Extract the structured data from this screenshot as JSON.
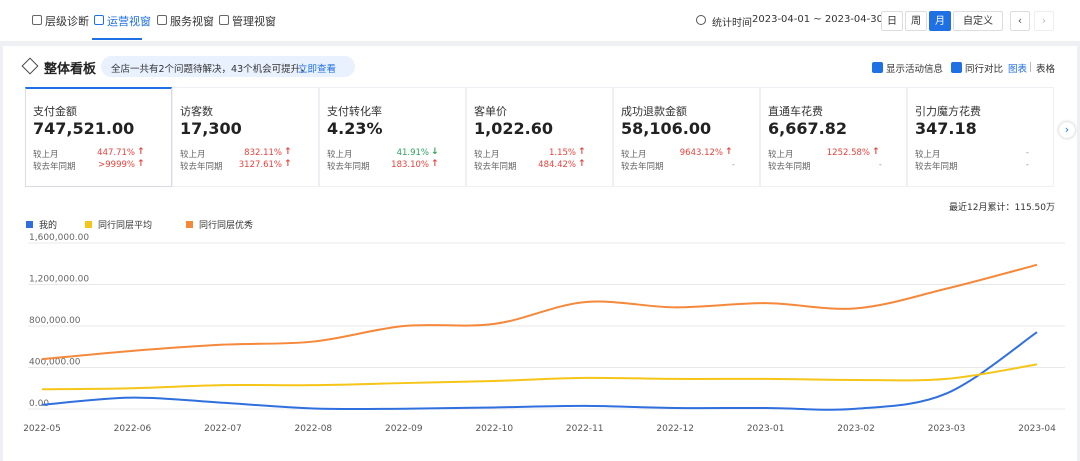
{
  "nav": {
    "tabs": [
      "层级诊断",
      "运营视窗",
      "服务视窗",
      "管理视窗"
    ],
    "active_tab": 1,
    "stat_label": "统计时间",
    "date_range": "2023-04-01 ~ 2023-04-30",
    "periods": [
      "日",
      "周",
      "月",
      "自定义"
    ],
    "active_period": 2
  },
  "panel": {
    "title": "整体看板",
    "notice": "全店一共有2个问题待解决，43个机会可提升，",
    "notice_link": "立即查看",
    "options": [
      {
        "label": "显示活动信息",
        "checked": true
      },
      {
        "label": "同行对比",
        "checked": true
      }
    ],
    "views": [
      "图表",
      "表格"
    ],
    "active_view": 0
  },
  "metrics": [
    {
      "name": "支付金额",
      "value": "747,521.00",
      "rows": [
        {
          "label": "较上月",
          "change": "447.71%",
          "trend": "up"
        },
        {
          "label": "较去年同期",
          "change": ">9999%",
          "trend": "up"
        }
      ]
    },
    {
      "name": "访客数",
      "value": "17,300",
      "rows": [
        {
          "label": "较上月",
          "change": "832.11%",
          "trend": "up"
        },
        {
          "label": "较去年同期",
          "change": "3127.61%",
          "trend": "up"
        }
      ]
    },
    {
      "name": "支付转化率",
      "value": "4.23%",
      "rows": [
        {
          "label": "较上月",
          "change": "41.91%",
          "trend": "down"
        },
        {
          "label": "较去年同期",
          "change": "183.10%",
          "trend": "up"
        }
      ]
    },
    {
      "name": "客单价",
      "value": "1,022.60",
      "rows": [
        {
          "label": "较上月",
          "change": "1.15%",
          "trend": "up"
        },
        {
          "label": "较去年同期",
          "change": "484.42%",
          "trend": "up"
        }
      ]
    },
    {
      "name": "成功退款金额",
      "value": "58,106.00",
      "rows": [
        {
          "label": "较上月",
          "change": "9643.12%",
          "trend": "up"
        },
        {
          "label": "较去年同期",
          "change": "-"
        }
      ]
    },
    {
      "name": "直通车花费",
      "value": "6,667.82",
      "rows": [
        {
          "label": "较上月",
          "change": "1252.58%",
          "trend": "up"
        },
        {
          "label": "较去年同期",
          "change": "-"
        }
      ]
    },
    {
      "name": "引力魔方花费",
      "value": "347.18",
      "rows": [
        {
          "label": "较上月",
          "change": "-"
        },
        {
          "label": "较去年同期",
          "change": "-"
        }
      ]
    }
  ],
  "chart_data": {
    "type": "line",
    "note": "最近12月累计：115.50万",
    "categories": [
      "2022-05",
      "2022-06",
      "2022-07",
      "2022-08",
      "2022-09",
      "2022-10",
      "2022-11",
      "2022-12",
      "2023-01",
      "2023-02",
      "2023-03",
      "2023-04"
    ],
    "series": [
      {
        "name": "我的",
        "color": "#2f6fde",
        "values": [
          40000,
          110000,
          60000,
          5000,
          3000,
          15000,
          30000,
          10000,
          10000,
          2000,
          150000,
          740000
        ]
      },
      {
        "name": "同行同层平均",
        "color": "#f5c518",
        "values": [
          190000,
          200000,
          230000,
          230000,
          250000,
          270000,
          300000,
          290000,
          290000,
          280000,
          290000,
          430000
        ]
      },
      {
        "name": "同行同层优秀",
        "color": "#f5883a",
        "values": [
          480000,
          560000,
          620000,
          650000,
          800000,
          820000,
          1030000,
          980000,
          1020000,
          970000,
          1160000,
          1390000
        ]
      }
    ],
    "ylim": [
      0,
      1600000
    ],
    "yticks": [
      {
        "value": 0,
        "label": "0.00"
      },
      {
        "value": 400000,
        "label": "400,000.00"
      },
      {
        "value": 800000,
        "label": "800,000.00"
      },
      {
        "value": 1200000,
        "label": "1,200,000.00"
      },
      {
        "value": 1600000,
        "label": "1,600,000.00"
      }
    ],
    "grid": true
  }
}
